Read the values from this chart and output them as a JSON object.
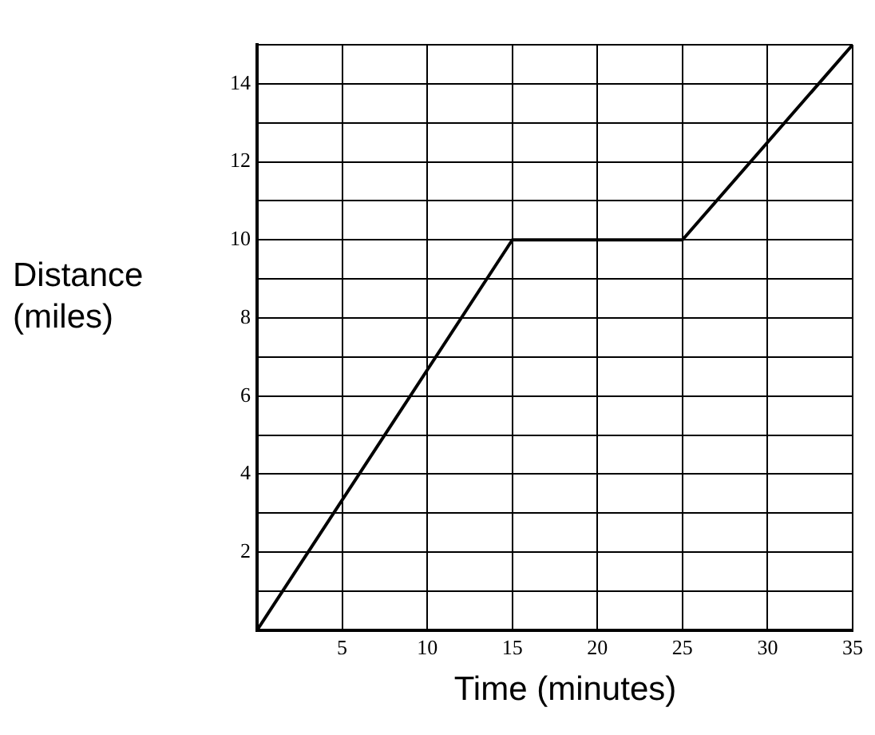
{
  "chart_data": {
    "type": "line",
    "xlabel": "Time (minutes)",
    "ylabel": "Distance (miles)",
    "x": [
      0,
      15,
      25,
      35
    ],
    "series": [
      {
        "color": "#000000",
        "values": [
          0,
          10,
          10,
          15
        ]
      }
    ],
    "xlim": [
      0,
      35
    ],
    "xticks": [
      {
        "value": 0,
        "label": null
      },
      5,
      10,
      15,
      20,
      25,
      30,
      35
    ],
    "ylim": [
      0,
      15
    ],
    "yticks": [
      {
        "value": 0,
        "label": null
      },
      {
        "value": 1,
        "label": null
      },
      2,
      {
        "value": 3,
        "label": null
      },
      4,
      {
        "value": 5,
        "label": null
      },
      6,
      {
        "value": 7,
        "label": null
      },
      8,
      {
        "value": 9,
        "label": null
      },
      10,
      {
        "value": 11,
        "label": null
      },
      12,
      {
        "value": 13,
        "label": null
      },
      14,
      {
        "value": 15,
        "label": null
      }
    ],
    "grid": true,
    "legend": false,
    "marker": "none",
    "line_style": "solid"
  }
}
